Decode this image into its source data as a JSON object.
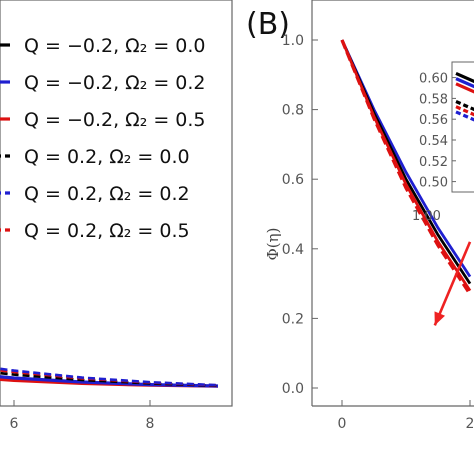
{
  "chart_data": [
    {
      "type": "line",
      "title": "",
      "xlabel": "",
      "ylabel": "",
      "x_visible_ticks": [
        "6",
        "8"
      ],
      "legend_placement": "top-right",
      "legend_entries": [
        {
          "label": "Q = −0.2, Ω₂ = 0.0",
          "color": "#000000",
          "dash": "long"
        },
        {
          "label": "Q = −0.2, Ω₂ = 0.2",
          "color": "#1f1fd0",
          "dash": "long"
        },
        {
          "label": "Q = −0.2, Ω₂ = 0.5",
          "color": "#dd1111",
          "dash": "long"
        },
        {
          "label": "Q = 0.2, Ω₂ = 0.0",
          "color": "#000000",
          "dash": "short"
        },
        {
          "label": "Q = 0.2, Ω₂ = 0.2",
          "color": "#1f1fd0",
          "dash": "short"
        },
        {
          "label": "Q = 0.2, Ω₂ = 0.5",
          "color": "#dd1111",
          "dash": "short"
        }
      ],
      "series": [
        {
          "color": "#dd1111",
          "style": "solid",
          "x": [
            5.0,
            5.5,
            6.0,
            7.0,
            8.0,
            9.0
          ],
          "y": [
            0.06,
            0.045,
            0.033,
            0.018,
            0.009,
            0.004
          ]
        },
        {
          "color": "#1f1fd0",
          "style": "solid",
          "x": [
            5.0,
            5.5,
            6.0,
            7.0,
            8.0,
            9.0
          ],
          "y": [
            0.08,
            0.06,
            0.045,
            0.025,
            0.012,
            0.005
          ]
        },
        {
          "color": "#000000",
          "style": "dashed",
          "x": [
            5.0,
            5.5,
            6.0,
            7.0,
            8.0,
            9.0
          ],
          "y": [
            0.1,
            0.08,
            0.062,
            0.035,
            0.018,
            0.006
          ]
        },
        {
          "color": "#dd1111",
          "style": "dashed",
          "x": [
            5.0,
            5.5,
            6.0,
            7.0,
            8.0,
            9.0
          ],
          "y": [
            0.12,
            0.095,
            0.075,
            0.043,
            0.022,
            0.008
          ]
        },
        {
          "color": "#1f1fd0",
          "style": "dashed",
          "x": [
            5.0,
            5.5,
            6.0,
            7.0,
            8.0,
            9.0
          ],
          "y": [
            0.13,
            0.104,
            0.082,
            0.047,
            0.024,
            0.009
          ]
        }
      ]
    },
    {
      "type": "line",
      "panel_label": "(B)",
      "title": "",
      "xlabel": "",
      "ylabel": "Φ(η)",
      "ylim": [
        0.0,
        1.0
      ],
      "y_ticks": [
        "0.0",
        "0.2",
        "0.4",
        "0.6",
        "0.8",
        "1.0"
      ],
      "x_visible_ticks": [
        "0",
        "2"
      ],
      "series": [
        {
          "color": "#1f1fd0",
          "style": "solid",
          "x": [
            0,
            0.5,
            1.0,
            1.5,
            2.0
          ],
          "y": [
            1.0,
            0.8,
            0.62,
            0.46,
            0.32
          ]
        },
        {
          "color": "#000000",
          "style": "solid",
          "x": [
            0,
            0.5,
            1.0,
            1.5,
            2.0
          ],
          "y": [
            1.0,
            0.79,
            0.6,
            0.44,
            0.3
          ]
        },
        {
          "color": "#dd1111",
          "style": "solid",
          "x": [
            0,
            0.5,
            1.0,
            1.5,
            2.0
          ],
          "y": [
            1.0,
            0.78,
            0.585,
            0.42,
            0.28
          ]
        },
        {
          "color": "#dd1111",
          "style": "dashed",
          "x": [
            0,
            0.5,
            1.0,
            1.5,
            2.0
          ],
          "y": [
            1.0,
            0.775,
            0.575,
            0.41,
            0.27
          ]
        }
      ],
      "annotation_arrow": {
        "color": "#ee2222",
        "from": {
          "x": 2.0,
          "y": 0.42
        },
        "to": {
          "x": 1.45,
          "y": 0.18
        }
      },
      "inset": {
        "y_ticks": [
          "0.60",
          "0.58",
          "0.56",
          "0.54",
          "0.52",
          "0.50"
        ],
        "ylim": [
          0.49,
          0.615
        ],
        "x_tick_label_partial": "1.00",
        "series": [
          {
            "color": "#000000",
            "style": "solid",
            "y": [
              0.604,
              0.596
            ]
          },
          {
            "color": "#1f1fd0",
            "style": "solid",
            "y": [
              0.599,
              0.591
            ]
          },
          {
            "color": "#dd1111",
            "style": "solid",
            "y": [
              0.594,
              0.586
            ]
          },
          {
            "color": "#000000",
            "style": "dashed",
            "y": [
              0.577,
              0.569
            ]
          },
          {
            "color": "#dd1111",
            "style": "dashed",
            "y": [
              0.572,
              0.564
            ]
          },
          {
            "color": "#1f1fd0",
            "style": "dashed",
            "y": [
              0.567,
              0.559
            ]
          }
        ]
      }
    }
  ]
}
